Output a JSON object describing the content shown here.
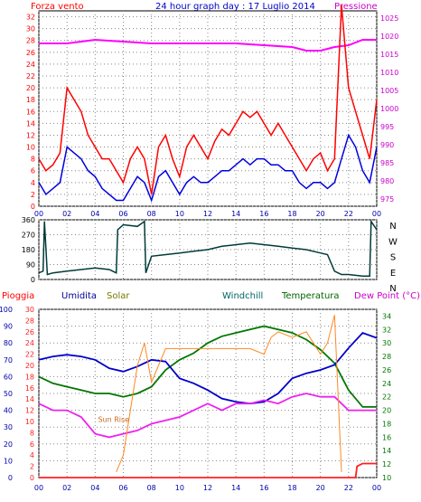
{
  "chart_data": [
    {
      "type": "line",
      "title": "24 hour graph day : 17 Luglio 2014",
      "left_label": "Forza vento",
      "right_label": "Pressione",
      "x_ticks": [
        "00",
        "02",
        "04",
        "06",
        "08",
        "10",
        "12",
        "14",
        "16",
        "18",
        "20",
        "22",
        "00"
      ],
      "y_left_ticks": [
        0,
        2,
        4,
        6,
        8,
        10,
        12,
        14,
        16,
        18,
        20,
        22,
        24,
        26,
        28,
        30,
        32
      ],
      "y_left_lim": [
        0,
        33
      ],
      "y_right_ticks": [
        975,
        980,
        985,
        990,
        995,
        1000,
        1005,
        1010,
        1015,
        1020,
        1025
      ],
      "y_right_lim": [
        973,
        1027
      ],
      "colors": {
        "gust": "#ff0000",
        "avg": "#0000dd",
        "pressure": "#ff00ff"
      },
      "series": [
        {
          "key": "pressure",
          "axis": "right",
          "x": [
            0,
            2,
            4,
            6,
            8,
            10,
            12,
            14,
            16,
            18,
            19,
            20,
            21,
            22,
            23,
            24
          ],
          "values": [
            1018,
            1018,
            1019,
            1018.5,
            1018,
            1018,
            1018,
            1018,
            1017.5,
            1017,
            1016,
            1016,
            1017,
            1017.5,
            1019,
            1019
          ]
        },
        {
          "key": "gust",
          "axis": "left",
          "x": [
            0,
            0.5,
            1,
            1.5,
            2,
            2.5,
            3,
            3.5,
            4,
            4.5,
            5,
            5.5,
            6,
            6.5,
            7,
            7.5,
            8,
            8.5,
            9,
            9.5,
            10,
            10.5,
            11,
            11.5,
            12,
            12.5,
            13,
            13.5,
            14,
            14.5,
            15,
            15.5,
            16,
            16.5,
            17,
            17.5,
            18,
            18.5,
            19,
            19.5,
            20,
            20.5,
            21,
            21.5,
            22,
            22.5,
            23,
            23.5,
            24
          ],
          "values": [
            8,
            6,
            7,
            9,
            20,
            18,
            16,
            12,
            10,
            8,
            8,
            6,
            4,
            8,
            10,
            8,
            2,
            10,
            12,
            8,
            5,
            10,
            12,
            10,
            8,
            11,
            13,
            12,
            14,
            16,
            15,
            16,
            14,
            12,
            14,
            12,
            10,
            8,
            6,
            8,
            9,
            6,
            8,
            34,
            20,
            16,
            12,
            8,
            18
          ]
        },
        {
          "key": "avg",
          "axis": "left",
          "x": [
            0,
            0.5,
            1,
            1.5,
            2,
            2.5,
            3,
            3.5,
            4,
            4.5,
            5,
            5.5,
            6,
            6.5,
            7,
            7.5,
            8,
            8.5,
            9,
            9.5,
            10,
            10.5,
            11,
            11.5,
            12,
            12.5,
            13,
            13.5,
            14,
            14.5,
            15,
            15.5,
            16,
            16.5,
            17,
            17.5,
            18,
            18.5,
            19,
            19.5,
            20,
            20.5,
            21,
            21.5,
            22,
            22.5,
            23,
            23.5,
            24
          ],
          "values": [
            4,
            2,
            3,
            4,
            10,
            9,
            8,
            6,
            5,
            3,
            2,
            1,
            1,
            3,
            5,
            4,
            1,
            5,
            6,
            4,
            2,
            4,
            5,
            4,
            4,
            5,
            6,
            6,
            7,
            8,
            7,
            8,
            8,
            7,
            7,
            6,
            6,
            4,
            3,
            4,
            4,
            3,
            4,
            8,
            12,
            10,
            6,
            4,
            10
          ]
        }
      ]
    },
    {
      "type": "line",
      "y_ticks_left": [
        0,
        90,
        180,
        270,
        360
      ],
      "y_lim": [
        0,
        360
      ],
      "right_labels": [
        "N",
        "W",
        "S",
        "E",
        "N"
      ],
      "colors": {
        "direction": "#003a3a"
      },
      "series": [
        {
          "key": "direction",
          "x": [
            0,
            0.3,
            0.4,
            0.6,
            1,
            2,
            3,
            4,
            5,
            5.5,
            5.6,
            6,
            7,
            7.5,
            7.6,
            8,
            9,
            10,
            11,
            12,
            13,
            14,
            15,
            16,
            17,
            18,
            19,
            20,
            20.5,
            21,
            21.5,
            22,
            23,
            23.5,
            23.6,
            24
          ],
          "values": [
            40,
            50,
            350,
            30,
            40,
            50,
            60,
            70,
            60,
            40,
            300,
            330,
            320,
            350,
            40,
            140,
            150,
            160,
            170,
            180,
            200,
            210,
            220,
            210,
            200,
            190,
            180,
            160,
            150,
            50,
            30,
            30,
            20,
            20,
            350,
            300
          ]
        }
      ]
    },
    {
      "type": "line",
      "labels": {
        "rain": "Pioggia",
        "hum": "Umidita",
        "solar": "Solar",
        "windchill": "Windchill",
        "temp": "Temperatura",
        "dew": "Dew Point (°C)"
      },
      "annotation": "Sun Rise",
      "x_ticks": [
        "00",
        "02",
        "04",
        "06",
        "08",
        "10",
        "12",
        "14",
        "16",
        "18",
        "20",
        "22",
        "00"
      ],
      "y_left_ticks": [
        0,
        10,
        20,
        30,
        40,
        50,
        60,
        70,
        80,
        90,
        100
      ],
      "y_mid_ticks": [
        0,
        2,
        4,
        6,
        8,
        10,
        12,
        14,
        16,
        18,
        20,
        22,
        24,
        26,
        28,
        30
      ],
      "y_right_ticks": [
        10,
        12,
        14,
        16,
        18,
        20,
        22,
        24,
        26,
        28,
        30,
        32,
        34
      ],
      "y_right_lim": [
        10,
        35
      ],
      "colors": {
        "rain": "#ff2020",
        "hum": "#0000cc",
        "solar": "#ff8822",
        "windchill": "#006600",
        "temp": "#007700",
        "dew": "#ee22ee"
      },
      "series": [
        {
          "key": "temp",
          "axis": "right",
          "x": [
            0,
            1,
            2,
            3,
            4,
            5,
            6,
            7,
            8,
            9,
            10,
            11,
            12,
            13,
            14,
            15,
            16,
            17,
            18,
            19,
            20,
            21,
            22,
            23,
            24
          ],
          "values": [
            25,
            24,
            23.5,
            23,
            22.5,
            22.5,
            22,
            22.5,
            23.5,
            26,
            27.5,
            28.5,
            30,
            31,
            31.5,
            32,
            32.5,
            32,
            31.5,
            30.5,
            29,
            27,
            23,
            20.5,
            20.5
          ]
        },
        {
          "key": "hum",
          "axis": "left",
          "x": [
            0,
            1,
            2,
            3,
            4,
            5,
            6,
            7,
            8,
            9,
            10,
            11,
            12,
            13,
            14,
            15,
            16,
            17,
            18,
            19,
            20,
            21,
            22,
            23,
            24
          ],
          "values": [
            70,
            72,
            73,
            72,
            70,
            65,
            63,
            66,
            70,
            69,
            59,
            56,
            52,
            47,
            45,
            44,
            45,
            50,
            59,
            62,
            64,
            67,
            77,
            86,
            83
          ]
        },
        {
          "key": "dew",
          "axis": "right",
          "x": [
            0,
            1,
            2,
            3,
            4,
            5,
            6,
            7,
            8,
            9,
            10,
            11,
            12,
            13,
            14,
            15,
            16,
            17,
            18,
            19,
            20,
            21,
            22,
            23,
            24
          ],
          "values": [
            21,
            20,
            20,
            19,
            16.5,
            16,
            16.5,
            17,
            18,
            18.5,
            19,
            20,
            21,
            20,
            21,
            21,
            21.5,
            21,
            22,
            22.5,
            22,
            22,
            20,
            20,
            20
          ]
        },
        {
          "key": "solar",
          "axis": "mid",
          "x": [
            5.5,
            6,
            7,
            7.5,
            8,
            9,
            10,
            11,
            12,
            13,
            14,
            15,
            16,
            16.5,
            17,
            18,
            19,
            20,
            20.5,
            21,
            21.5
          ],
          "values": [
            1,
            4,
            20,
            24,
            17,
            23,
            23,
            23,
            23,
            23,
            23,
            23,
            22,
            25,
            26,
            25,
            26,
            22,
            24,
            29,
            1
          ]
        },
        {
          "key": "rain",
          "axis": "mid",
          "x": [
            0,
            22.5,
            22.6,
            23,
            24
          ],
          "values": [
            0,
            0,
            2,
            2.5,
            2.5
          ]
        }
      ]
    }
  ]
}
